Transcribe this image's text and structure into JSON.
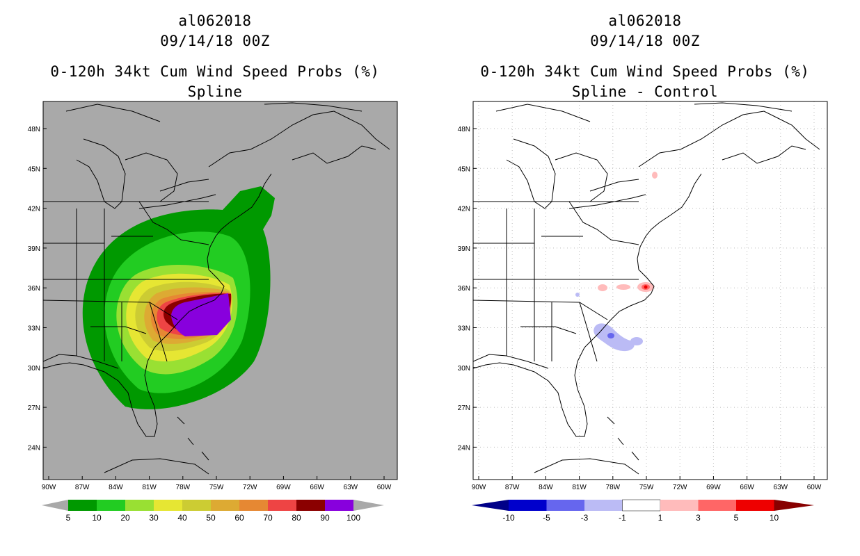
{
  "panels": [
    {
      "storm_id": "al062018",
      "datetime": "09/14/18 00Z",
      "product": "0-120h 34kt Cum Wind Speed Probs (%)",
      "subtitle": "Spline",
      "background_color": "#a9a9a9",
      "colorbar": {
        "labels": [
          "5",
          "10",
          "20",
          "30",
          "40",
          "50",
          "60",
          "70",
          "80",
          "90",
          "100"
        ],
        "colors": [
          "#009900",
          "#22cc22",
          "#99e033",
          "#e6e633",
          "#cccc33",
          "#ddaa33",
          "#e68833",
          "#ee4444",
          "#8b0000",
          "#8800dd"
        ]
      }
    },
    {
      "storm_id": "al062018",
      "datetime": "09/14/18 00Z",
      "product": "0-120h 34kt Cum Wind Speed Probs (%)",
      "subtitle": "Spline - Control",
      "background_color": "#ffffff",
      "colorbar": {
        "labels": [
          "-10",
          "-5",
          "-3",
          "-1",
          "1",
          "3",
          "5",
          "10"
        ],
        "colors": [
          "#0000cc",
          "#6666ee",
          "#bbbbf5",
          "#ffffff",
          "#ffbbbb",
          "#ff6666",
          "#ee0000"
        ],
        "end_colors": [
          "#000088",
          "#880000"
        ]
      }
    }
  ],
  "axes": {
    "lon_labels": [
      "90W",
      "87W",
      "84W",
      "81W",
      "78W",
      "75W",
      "72W",
      "69W",
      "66W",
      "63W",
      "60W"
    ],
    "lat_labels": [
      "48N",
      "45N",
      "42N",
      "39N",
      "36N",
      "33N",
      "30N",
      "27N",
      "24N"
    ]
  }
}
